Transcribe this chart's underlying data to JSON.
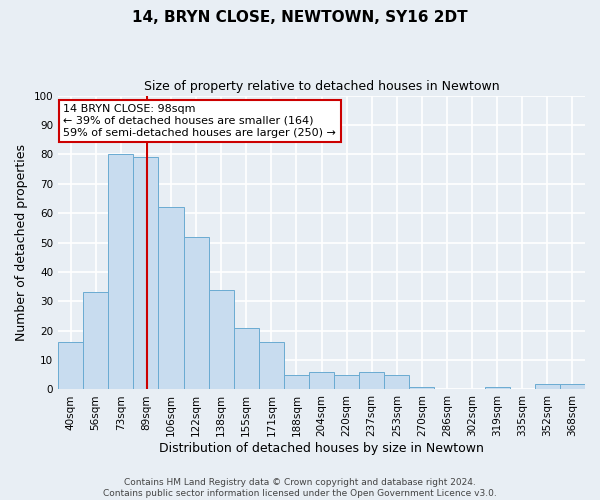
{
  "title": "14, BRYN CLOSE, NEWTOWN, SY16 2DT",
  "subtitle": "Size of property relative to detached houses in Newtown",
  "xlabel": "Distribution of detached houses by size in Newtown",
  "ylabel": "Number of detached properties",
  "bar_labels": [
    "40sqm",
    "56sqm",
    "73sqm",
    "89sqm",
    "106sqm",
    "122sqm",
    "138sqm",
    "155sqm",
    "171sqm",
    "188sqm",
    "204sqm",
    "220sqm",
    "237sqm",
    "253sqm",
    "270sqm",
    "286sqm",
    "302sqm",
    "319sqm",
    "335sqm",
    "352sqm",
    "368sqm"
  ],
  "bar_heights": [
    16,
    33,
    80,
    79,
    62,
    52,
    34,
    21,
    16,
    5,
    6,
    5,
    6,
    5,
    1,
    0,
    0,
    1,
    0,
    2,
    2
  ],
  "bar_color": "#c8dcef",
  "bar_edge_color": "#6aabd2",
  "bar_width": 1.0,
  "vline_x": 3.55,
  "vline_color": "#cc0000",
  "ylim": [
    0,
    100
  ],
  "yticks": [
    0,
    10,
    20,
    30,
    40,
    50,
    60,
    70,
    80,
    90,
    100
  ],
  "annotation_title": "14 BRYN CLOSE: 98sqm",
  "annotation_line1": "← 39% of detached houses are smaller (164)",
  "annotation_line2": "59% of semi-detached houses are larger (250) →",
  "annotation_box_color": "#ffffff",
  "annotation_box_edge": "#cc0000",
  "footer1": "Contains HM Land Registry data © Crown copyright and database right 2024.",
  "footer2": "Contains public sector information licensed under the Open Government Licence v3.0.",
  "background_color": "#e8eef4",
  "plot_background": "#e8eef4",
  "grid_color": "#ffffff",
  "title_fontsize": 11,
  "subtitle_fontsize": 9,
  "axis_label_fontsize": 9,
  "tick_fontsize": 7.5,
  "footer_fontsize": 6.5,
  "annotation_fontsize": 8
}
